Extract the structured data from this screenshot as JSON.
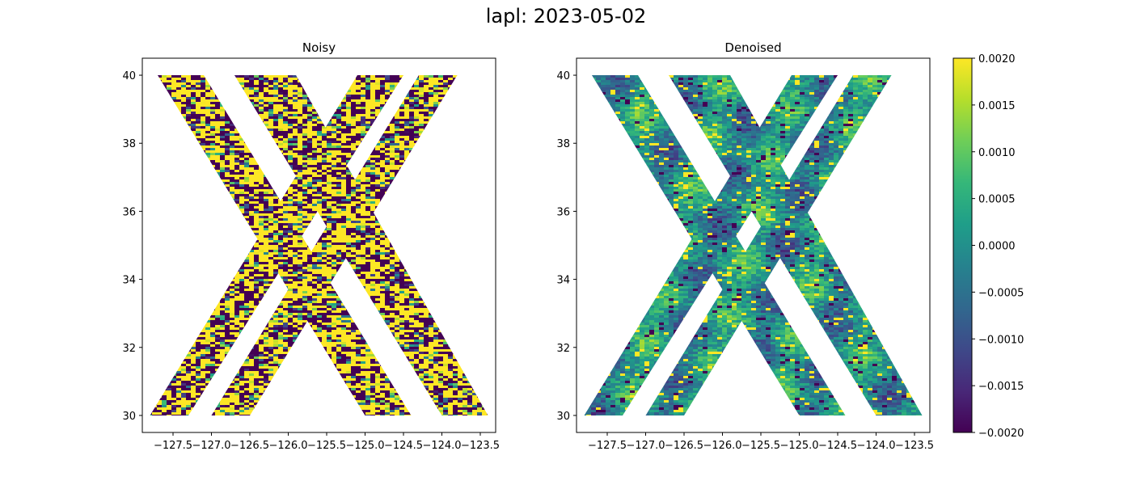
{
  "figure": {
    "suptitle": "lapl: 2023-05-02"
  },
  "chart_data": [
    {
      "type": "heatmap",
      "title": "Noisy",
      "xlabel": "",
      "ylabel": "",
      "xlim": [
        -127.9,
        -123.3
      ],
      "ylim": [
        29.5,
        40.5
      ],
      "x_ticks": [
        "−127.5",
        "−127.0",
        "−126.5",
        "−126.0",
        "−125.5",
        "−125.0",
        "−124.5",
        "−124.0",
        "−123.5"
      ],
      "x_tick_values": [
        -127.5,
        -127.0,
        -126.5,
        -126.0,
        -125.5,
        -125.0,
        -124.5,
        -124.0,
        -123.5
      ],
      "y_ticks": [
        "30",
        "32",
        "34",
        "36",
        "38",
        "40"
      ],
      "y_tick_values": [
        30,
        32,
        34,
        36,
        38,
        40
      ],
      "grid": false,
      "value_range": [
        -0.002,
        0.002
      ],
      "texture": "saturated noise, values mostly clipped at ±0.0020",
      "swaths": [
        {
          "name": "swath-left-descending",
          "top": [
            -127.7,
            -127.1
          ],
          "bottom": [
            -125.0,
            -124.4
          ]
        },
        {
          "name": "swath-right-descending",
          "top": [
            -126.7,
            -125.9
          ],
          "bottom": [
            -124.0,
            -123.4
          ]
        },
        {
          "name": "swath-left-ascending",
          "bottom": [
            -127.8,
            -127.3
          ],
          "top": [
            -125.1,
            -124.5
          ]
        },
        {
          "name": "swath-right-ascending",
          "bottom": [
            -127.0,
            -126.5
          ],
          "top": [
            -124.3,
            -123.8
          ]
        }
      ]
    },
    {
      "type": "heatmap",
      "title": "Denoised",
      "xlabel": "",
      "ylabel": "",
      "xlim": [
        -127.9,
        -123.3
      ],
      "ylim": [
        29.5,
        40.5
      ],
      "x_ticks": [
        "−127.5",
        "−127.0",
        "−126.5",
        "−126.0",
        "−125.5",
        "−125.0",
        "−124.5",
        "−124.0",
        "−123.5"
      ],
      "x_tick_values": [
        -127.5,
        -127.0,
        -126.5,
        -126.0,
        -125.5,
        -125.0,
        -124.5,
        -124.0,
        -123.5
      ],
      "y_ticks": [
        "30",
        "32",
        "34",
        "36",
        "38",
        "40"
      ],
      "y_tick_values": [
        30,
        32,
        34,
        36,
        38,
        40
      ],
      "grid": false,
      "value_range": [
        -0.002,
        0.002
      ],
      "texture": "smooth, values mostly near 0.0000",
      "swaths": [
        {
          "name": "swath-left-descending",
          "top": [
            -127.7,
            -127.1
          ],
          "bottom": [
            -125.0,
            -124.4
          ]
        },
        {
          "name": "swath-right-descending",
          "top": [
            -126.7,
            -125.9
          ],
          "bottom": [
            -124.0,
            -123.4
          ]
        },
        {
          "name": "swath-left-ascending",
          "bottom": [
            -127.8,
            -127.3
          ],
          "top": [
            -125.1,
            -124.5
          ]
        },
        {
          "name": "swath-right-ascending",
          "bottom": [
            -127.0,
            -126.5
          ],
          "top": [
            -124.3,
            -123.8
          ]
        }
      ]
    }
  ],
  "colorbar": {
    "colormap": "viridis",
    "colors": [
      "#440154",
      "#482878",
      "#3e4989",
      "#31688e",
      "#26828e",
      "#1f9e89",
      "#35b779",
      "#6ece58",
      "#b5de2b",
      "#fde725"
    ],
    "range": [
      -0.002,
      0.002
    ],
    "tick_labels": [
      "0.0020",
      "0.0015",
      "0.0010",
      "0.0005",
      "0.0000",
      "−0.0005",
      "−0.0010",
      "−0.0015",
      "−0.0020"
    ],
    "tick_values": [
      0.002,
      0.0015,
      0.001,
      0.0005,
      0.0,
      -0.0005,
      -0.001,
      -0.0015,
      -0.002
    ]
  }
}
